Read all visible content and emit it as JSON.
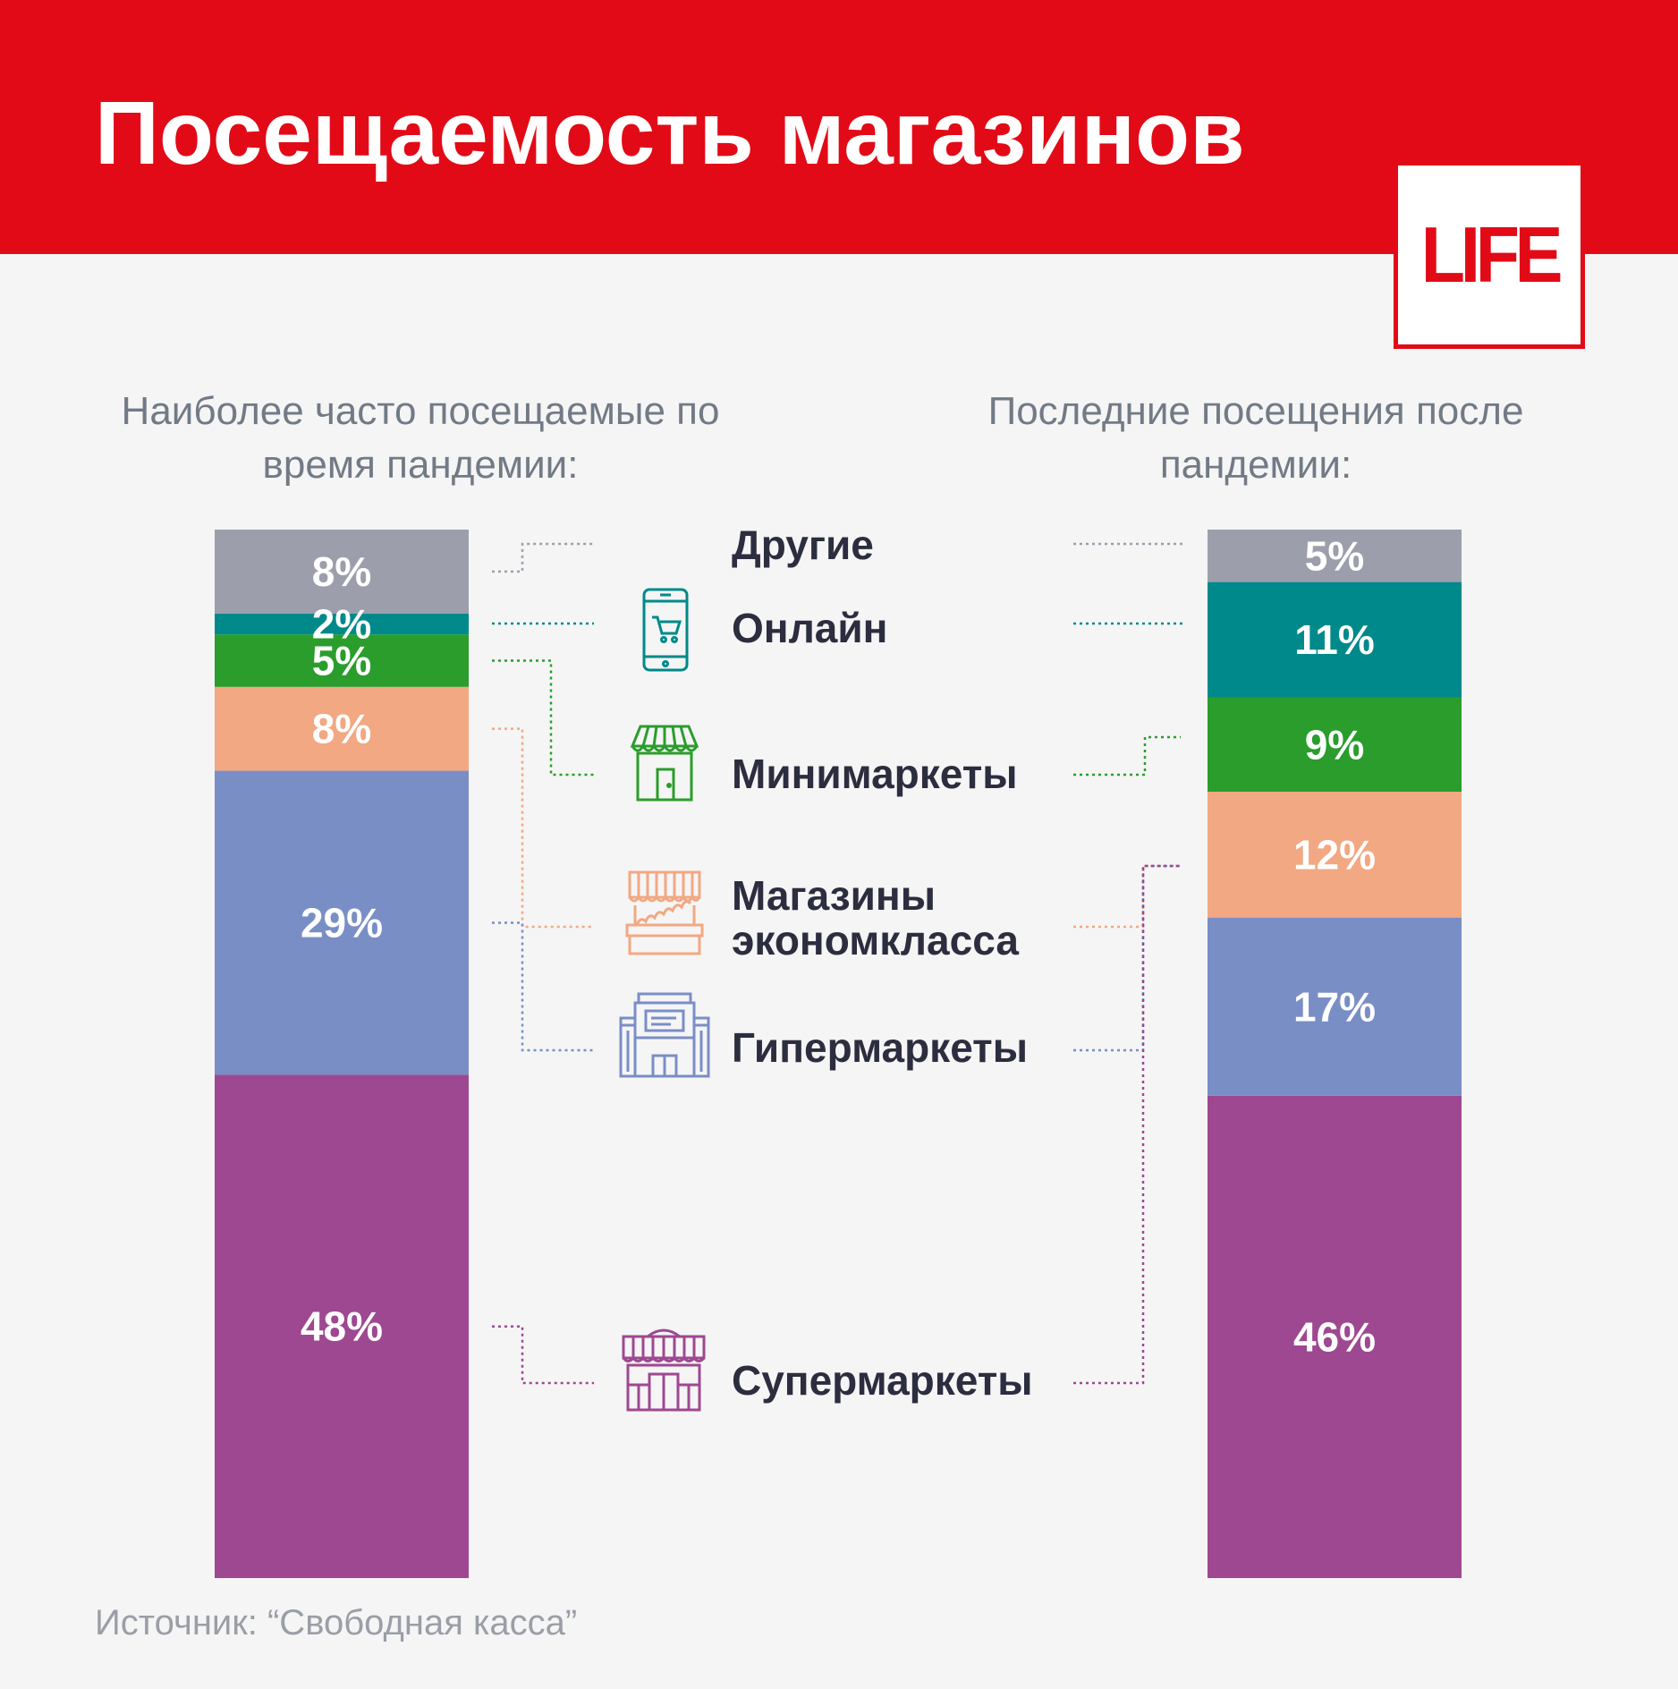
{
  "header": {
    "title": "Посещаемость магазинов",
    "logo": "LIFE"
  },
  "subtitles": {
    "left": "Наиболее часто посещаемые по время пандемии:",
    "right": "Последние посещения после пандемии:"
  },
  "source": "Источник: “Свободная касса”",
  "chart_data": {
    "type": "bar",
    "stacked": true,
    "orientation": "vertical",
    "unit": "%",
    "categories": [
      "Другие",
      "Онлайн",
      "Минимаркеты",
      "Магазины экономкласса",
      "Гипермаркеты",
      "Супермаркеты"
    ],
    "colors": [
      "#9c9fab",
      "#00898a",
      "#2a9d2c",
      "#f2a882",
      "#7a8ec6",
      "#9e4891"
    ],
    "icons": [
      "",
      "smartphone-cart-icon",
      "minimarket-icon",
      "economy-store-icon",
      "hypermarket-icon",
      "supermarket-icon"
    ],
    "series": [
      {
        "values": [
          8,
          2,
          5,
          8,
          29,
          48
        ],
        "labels": [
          "8%",
          "2%",
          "5%",
          "8%",
          "29%",
          "48%"
        ]
      },
      {
        "values": [
          5,
          11,
          9,
          12,
          17,
          46
        ],
        "labels": [
          "5%",
          "11%",
          "9%",
          "12%",
          "17%",
          "46%"
        ]
      }
    ]
  }
}
